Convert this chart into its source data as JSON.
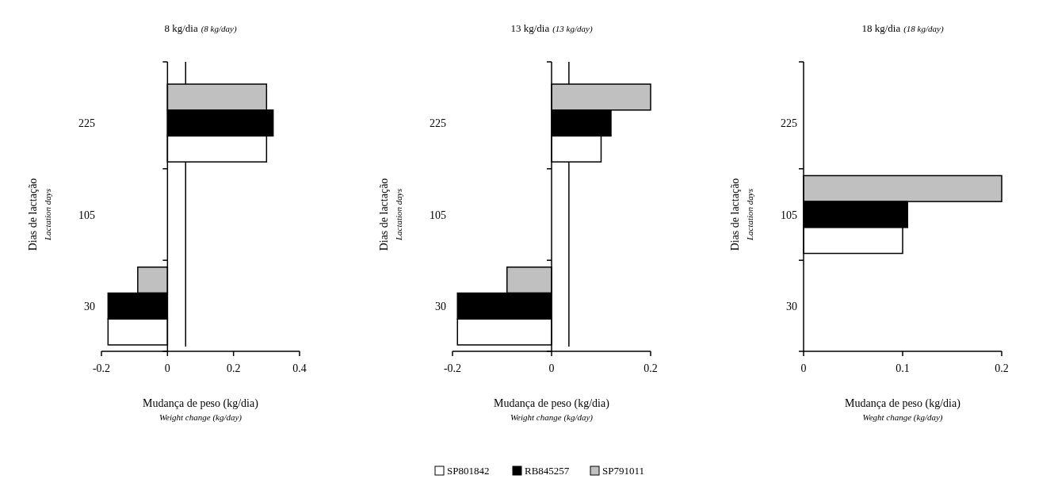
{
  "chart_data": [
    {
      "type": "bar",
      "orientation": "horizontal",
      "title": "8 kg/dia",
      "subtitle": "(8 kg/day)",
      "xlabel": "Mudança de peso (kg/dia)",
      "ylabel": "Dias de lactação",
      "annotations": [
        "Weight change (kg/day)",
        "Lactation days"
      ],
      "categories": [
        "225",
        "105",
        "30"
      ],
      "xlim": [
        -0.2,
        0.4
      ],
      "xticks": [
        -0.2,
        0,
        0.2,
        0.4
      ],
      "ref_lines": [
        {
          "axis": "x",
          "value": 0.055,
          "color": "#000000"
        }
      ],
      "series": [
        {
          "color": "#c0c0c0",
          "values": [
            0.3,
            0,
            -0.09
          ]
        },
        {
          "color": "#000000",
          "values": [
            0.32,
            0,
            -0.18
          ]
        },
        {
          "color": "#ffffff",
          "values": [
            0.3,
            0,
            -0.18
          ]
        }
      ]
    },
    {
      "type": "bar",
      "orientation": "horizontal",
      "title": "13 kg/dia",
      "subtitle": "(13 kg/day)",
      "xlabel": "Mudança de peso (kg/dia)",
      "ylabel": "Dias de lactação",
      "annotations": [
        "Weight change (kg/day)",
        "Lactation days"
      ],
      "categories": [
        "225",
        "105",
        "30"
      ],
      "xlim": [
        -0.2,
        0.2
      ],
      "xticks": [
        -0.2,
        0,
        0.2
      ],
      "ref_lines": [
        {
          "axis": "x",
          "value": 0.035,
          "color": "#000000"
        }
      ],
      "legend": "bottom",
      "series": [
        {
          "name": "SP791011",
          "color": "#c0c0c0",
          "values": [
            0.2,
            0,
            -0.09
          ]
        },
        {
          "name": "RB845257",
          "color": "#000000",
          "values": [
            0.12,
            0,
            -0.19
          ]
        },
        {
          "name": "SP801842",
          "color": "#ffffff",
          "values": [
            0.1,
            0,
            -0.19
          ]
        }
      ]
    },
    {
      "type": "bar",
      "orientation": "horizontal",
      "title": "18 kg/dia",
      "subtitle": "(18 kg/day)",
      "xlabel": "Mudança de peso (kg/dia)",
      "ylabel": "Dias de lactação",
      "annotations": [
        "Weght change (kg/day)",
        "Lactation days"
      ],
      "categories": [
        "225",
        "105",
        "30"
      ],
      "xlim": [
        0,
        0.2
      ],
      "xticks": [
        0,
        0.1,
        0.2
      ],
      "series": [
        {
          "color": "#c0c0c0",
          "values": [
            0,
            0.2,
            0
          ]
        },
        {
          "color": "#000000",
          "values": [
            0,
            0.105,
            0
          ]
        },
        {
          "color": "#ffffff",
          "values": [
            0,
            0.1,
            0
          ]
        }
      ]
    }
  ]
}
